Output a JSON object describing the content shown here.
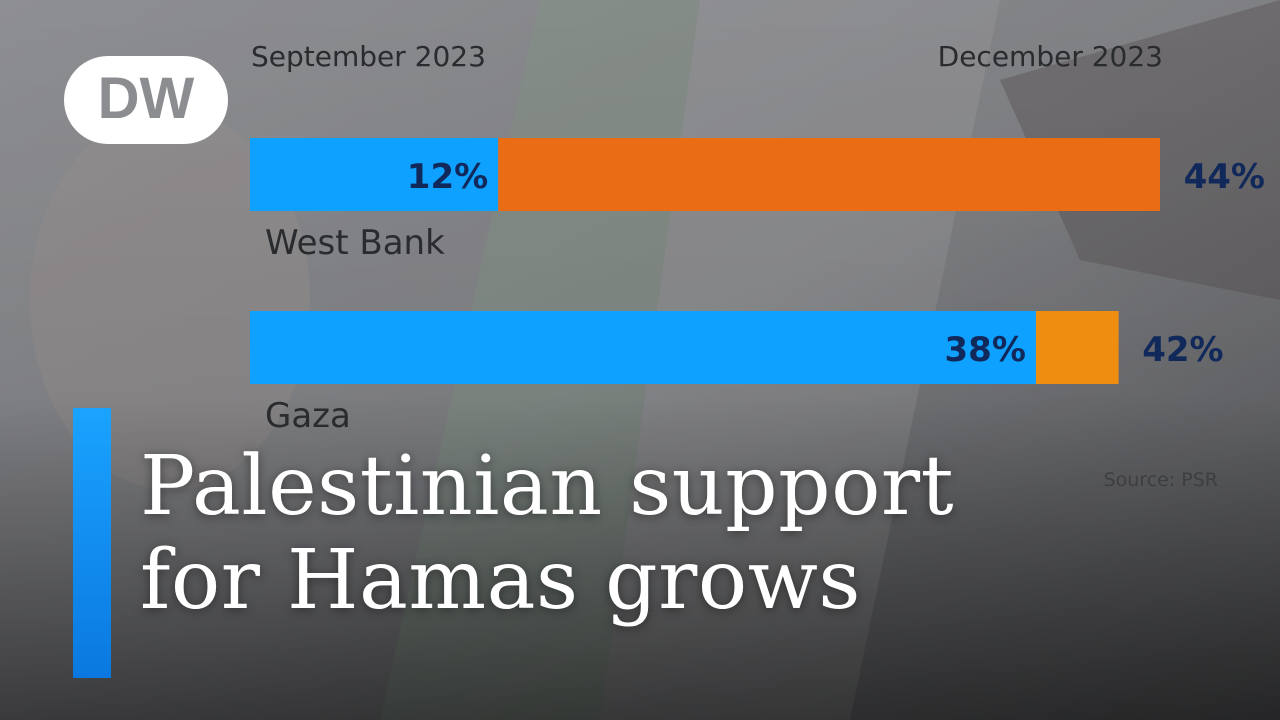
{
  "brand": {
    "logo_text": "DW"
  },
  "headline": {
    "line1": "Palestinian support",
    "line2": "for Hamas grows"
  },
  "colors": {
    "sep": "#0ea1ff",
    "dec_west": "#ea6d16",
    "dec_gaza": "#ef8d11",
    "value_label": "#10295a",
    "accent": "#1aa3ff"
  },
  "chart_data": {
    "type": "bar",
    "orientation": "horizontal",
    "series_labels": {
      "start": "September 2023",
      "end": "December 2023"
    },
    "categories": [
      "West Bank",
      "Gaza"
    ],
    "series": [
      {
        "name": "September 2023",
        "values": [
          12,
          38
        ],
        "labels": [
          "12%",
          "38%"
        ]
      },
      {
        "name": "December 2023",
        "values": [
          44,
          42
        ],
        "labels": [
          "44%",
          "42%"
        ]
      }
    ],
    "unit": "%",
    "source": "Source: PSR",
    "xlim": [
      0,
      44
    ]
  }
}
